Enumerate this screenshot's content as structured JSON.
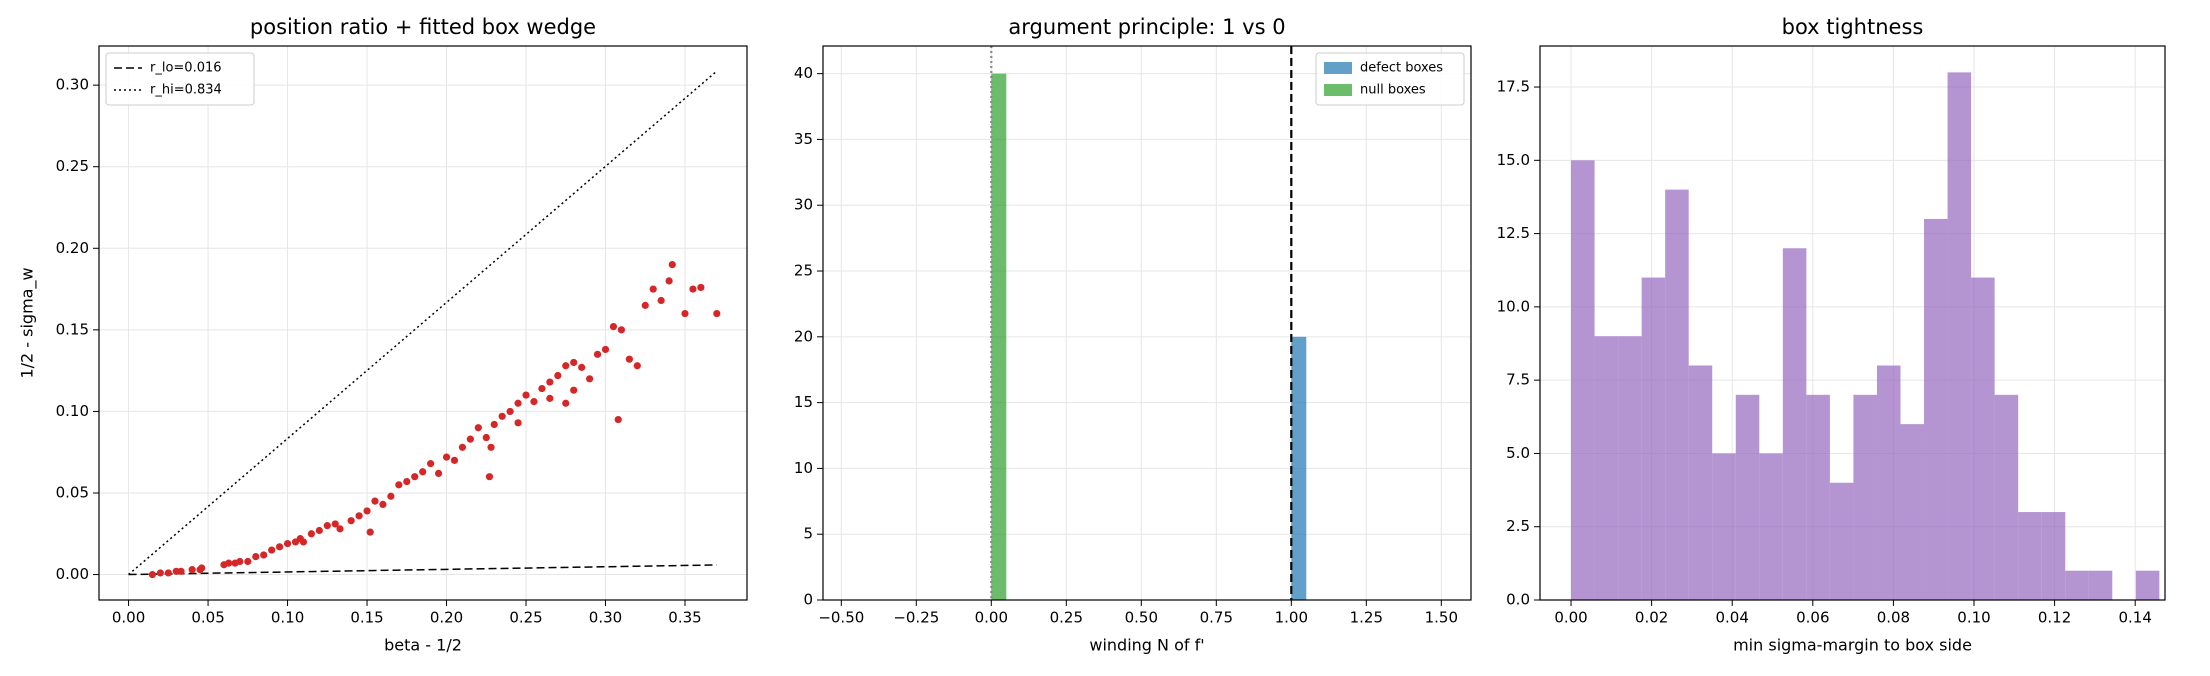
{
  "chart_data": [
    {
      "type": "scatter",
      "title": "position ratio + fitted box wedge",
      "xlabel": "beta - 1/2",
      "ylabel": "1/2 - sigma_w",
      "xlim": [
        -0.0186,
        0.389
      ],
      "ylim": [
        -0.0156,
        0.324
      ],
      "xticks": [
        {
          "value": 0,
          "label": "0.00"
        },
        {
          "value": 0.05,
          "label": "0.05"
        },
        {
          "value": 0.1,
          "label": "0.10"
        },
        {
          "value": 0.15,
          "label": "0.15"
        },
        {
          "value": 0.2,
          "label": "0.20"
        },
        {
          "value": 0.25,
          "label": "0.25"
        },
        {
          "value": 0.3,
          "label": "0.30"
        },
        {
          "value": 0.35,
          "label": "0.35"
        }
      ],
      "yticks": [
        {
          "value": 0,
          "label": "0.00"
        },
        {
          "value": 0.05,
          "label": "0.05"
        },
        {
          "value": 0.1,
          "label": "0.10"
        },
        {
          "value": 0.15,
          "label": "0.15"
        },
        {
          "value": 0.2,
          "label": "0.20"
        },
        {
          "value": 0.25,
          "label": "0.25"
        },
        {
          "value": 0.3,
          "label": "0.30"
        }
      ],
      "grid": true,
      "legend": "upper left",
      "series": [
        {
          "name": "r_lo=0.016",
          "color": "#000000",
          "style": "dashed",
          "x": [
            0,
            0.37
          ],
          "values": [
            0,
            0.0059
          ]
        },
        {
          "name": "r_hi=0.834",
          "color": "#000000",
          "style": "dotted",
          "x": [
            0,
            0.37
          ],
          "values": [
            0,
            0.3086
          ]
        },
        {
          "color": "#d62728",
          "marker": "circle",
          "x": [
            0.015,
            0.02,
            0.025,
            0.03,
            0.033,
            0.04,
            0.045,
            0.046,
            0.06,
            0.063,
            0.067,
            0.07,
            0.075,
            0.08,
            0.085,
            0.09,
            0.095,
            0.1,
            0.105,
            0.108,
            0.11,
            0.115,
            0.12,
            0.125,
            0.13,
            0.133,
            0.14,
            0.145,
            0.15,
            0.152,
            0.155,
            0.16,
            0.165,
            0.17,
            0.175,
            0.18,
            0.185,
            0.19,
            0.195,
            0.2,
            0.205,
            0.21,
            0.215,
            0.22,
            0.225,
            0.227,
            0.23,
            0.235,
            0.24,
            0.245,
            0.25,
            0.255,
            0.26,
            0.265,
            0.27,
            0.275,
            0.28,
            0.285,
            0.29,
            0.295,
            0.3,
            0.305,
            0.308,
            0.31,
            0.315,
            0.32,
            0.325,
            0.33,
            0.335,
            0.34,
            0.342,
            0.35,
            0.355,
            0.36,
            0.37,
            0.265,
            0.275,
            0.245,
            0.28,
            0.228
          ],
          "values": [
            0,
            0.001,
            0.001,
            0.002,
            0.002,
            0.003,
            0.003,
            0.004,
            0.006,
            0.007,
            0.007,
            0.008,
            0.008,
            0.011,
            0.012,
            0.015,
            0.017,
            0.019,
            0.02,
            0.022,
            0.02,
            0.025,
            0.027,
            0.03,
            0.031,
            0.028,
            0.033,
            0.036,
            0.039,
            0.026,
            0.045,
            0.043,
            0.048,
            0.055,
            0.057,
            0.06,
            0.063,
            0.068,
            0.062,
            0.072,
            0.07,
            0.078,
            0.083,
            0.09,
            0.084,
            0.06,
            0.092,
            0.097,
            0.1,
            0.105,
            0.11,
            0.106,
            0.114,
            0.118,
            0.122,
            0.128,
            0.13,
            0.127,
            0.12,
            0.135,
            0.138,
            0.152,
            0.095,
            0.15,
            0.132,
            0.128,
            0.165,
            0.175,
            0.168,
            0.18,
            0.19,
            0.16,
            0.175,
            0.176,
            0.16,
            0.108,
            0.105,
            0.093,
            0.113,
            0.078
          ]
        }
      ]
    },
    {
      "type": "histogram",
      "title": "argument principle: 1 vs 0",
      "xlabel": "winding N of f'",
      "xlim": [
        -0.561,
        1.599
      ],
      "ylim": [
        0,
        42.1
      ],
      "xticks": [
        {
          "value": -0.5,
          "label": "−0.50"
        },
        {
          "value": -0.25,
          "label": "−0.25"
        },
        {
          "value": 0,
          "label": "0.00"
        },
        {
          "value": 0.25,
          "label": "0.25"
        },
        {
          "value": 0.5,
          "label": "0.50"
        },
        {
          "value": 0.75,
          "label": "0.75"
        },
        {
          "value": 1,
          "label": "1.00"
        },
        {
          "value": 1.25,
          "label": "1.25"
        },
        {
          "value": 1.5,
          "label": "1.50"
        }
      ],
      "yticks": [
        0,
        5,
        10,
        15,
        20,
        25,
        30,
        35,
        40
      ],
      "grid": true,
      "legend": "upper right",
      "series": [
        {
          "name": "defect boxes",
          "color": "#1f77b4",
          "alpha": 0.7,
          "bins": [
            1,
            1.05
          ],
          "values": [
            20
          ]
        },
        {
          "name": "null boxes",
          "color": "#2ca02c",
          "alpha": 0.7,
          "bins": [
            0,
            0.05
          ],
          "values": [
            40
          ]
        }
      ],
      "vlines": [
        {
          "x": 1,
          "color": "#000000",
          "style": "dashed"
        },
        {
          "x": 0,
          "color": "#888888",
          "style": "dotted"
        }
      ]
    },
    {
      "type": "histogram",
      "title": "box tightness",
      "xlabel": "min sigma-margin to box side",
      "xlim": [
        -0.0077,
        0.1474
      ],
      "ylim": [
        0,
        18.9
      ],
      "xticks": [
        {
          "value": 0,
          "label": "0.00"
        },
        {
          "value": 0.02,
          "label": "0.02"
        },
        {
          "value": 0.04,
          "label": "0.04"
        },
        {
          "value": 0.06,
          "label": "0.06"
        },
        {
          "value": 0.08,
          "label": "0.08"
        },
        {
          "value": 0.1,
          "label": "0.10"
        },
        {
          "value": 0.12,
          "label": "0.12"
        },
        {
          "value": 0.14,
          "label": "0.14"
        }
      ],
      "yticks": [
        {
          "value": 0,
          "label": "0.0"
        },
        {
          "value": 2.5,
          "label": "2.5"
        },
        {
          "value": 5,
          "label": "5.0"
        },
        {
          "value": 7.5,
          "label": "7.5"
        },
        {
          "value": 10,
          "label": "10.0"
        },
        {
          "value": 12.5,
          "label": "12.5"
        },
        {
          "value": 15,
          "label": "15.0"
        },
        {
          "value": 17.5,
          "label": "17.5"
        }
      ],
      "grid": true,
      "series": [
        {
          "color": "#9467bd",
          "alpha": 0.7,
          "bins": [
            0,
            0.00584,
            0.01168,
            0.01752,
            0.02336,
            0.0292,
            0.03504,
            0.04088,
            0.04672,
            0.05256,
            0.0584,
            0.06424,
            0.07008,
            0.07592,
            0.08176,
            0.0876,
            0.09344,
            0.09928,
            0.10512,
            0.11096,
            0.1168,
            0.12264,
            0.12848,
            0.13432,
            0.14016,
            0.146
          ],
          "values": [
            15,
            9,
            9,
            11,
            14,
            8,
            5,
            7,
            5,
            12,
            7,
            4,
            7,
            8,
            6,
            13,
            18,
            11,
            7,
            3,
            3,
            1,
            1,
            0,
            1
          ]
        }
      ]
    }
  ]
}
